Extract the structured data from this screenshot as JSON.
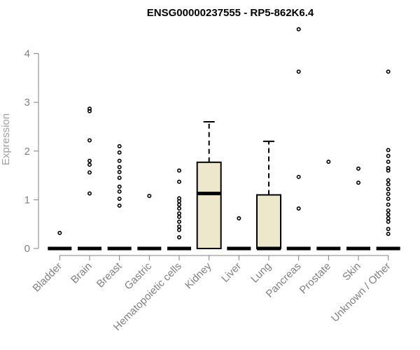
{
  "chart_data": {
    "type": "boxplot",
    "title": "ENSG00000237555 - RP5-862K6.4",
    "ylabel": "Expression",
    "xlabel": "",
    "ylim": [
      0,
      4.5
    ],
    "yticks": [
      0,
      1,
      2,
      3,
      4
    ],
    "grid": false,
    "legend": "none",
    "box_fill": "#ede7cb",
    "categories": [
      "Bladder",
      "Brain",
      "Breast",
      "Gastric",
      "Hematopoietic cells",
      "Kidney",
      "Liver",
      "Lung",
      "Pancreas",
      "Prostate",
      "Skin",
      "Unknown / Other"
    ],
    "boxes": [
      {
        "category": "Bladder",
        "q1": 0,
        "median": 0,
        "q3": 0,
        "whisker_low": 0,
        "whisker_high": 0,
        "outliers": [
          0.32
        ]
      },
      {
        "category": "Brain",
        "q1": 0,
        "median": 0,
        "q3": 0,
        "whisker_low": 0,
        "whisker_high": 0,
        "outliers": [
          1.13,
          1.56,
          1.72,
          1.8,
          2.22,
          2.82,
          2.87
        ]
      },
      {
        "category": "Breast",
        "q1": 0,
        "median": 0,
        "q3": 0,
        "whisker_low": 0,
        "whisker_high": 0,
        "outliers": [
          0.88,
          1.02,
          1.17,
          1.27,
          1.45,
          1.57,
          1.67,
          1.8,
          1.97,
          2.1
        ]
      },
      {
        "category": "Gastric",
        "q1": 0,
        "median": 0,
        "q3": 0,
        "whisker_low": 0,
        "whisker_high": 0,
        "outliers": [
          1.08
        ]
      },
      {
        "category": "Hematopoietic cells",
        "q1": 0,
        "median": 0,
        "q3": 0,
        "whisker_low": 0,
        "whisker_high": 0,
        "outliers": [
          0.23,
          0.38,
          0.45,
          0.55,
          0.65,
          0.72,
          0.82,
          0.9,
          0.97,
          1.03,
          1.37,
          1.6
        ]
      },
      {
        "category": "Kidney",
        "q1": 0,
        "median": 1.13,
        "q3": 1.77,
        "whisker_low": 0,
        "whisker_high": 2.6,
        "outliers": []
      },
      {
        "category": "Liver",
        "q1": 0,
        "median": 0,
        "q3": 0,
        "whisker_low": 0,
        "whisker_high": 0,
        "outliers": [
          0.62
        ]
      },
      {
        "category": "Lung",
        "q1": 0,
        "median": 0,
        "q3": 1.1,
        "whisker_low": 0,
        "whisker_high": 2.2,
        "outliers": []
      },
      {
        "category": "Pancreas",
        "q1": 0,
        "median": 0,
        "q3": 0,
        "whisker_low": 0,
        "whisker_high": 0,
        "outliers": [
          0.82,
          1.47,
          3.63,
          4.5
        ]
      },
      {
        "category": "Prostate",
        "q1": 0,
        "median": 0,
        "q3": 0,
        "whisker_low": 0,
        "whisker_high": 0,
        "outliers": [
          1.78
        ]
      },
      {
        "category": "Skin",
        "q1": 0,
        "median": 0,
        "q3": 0,
        "whisker_low": 0,
        "whisker_high": 0,
        "outliers": [
          1.35,
          1.64
        ]
      },
      {
        "category": "Unknown / Other",
        "q1": 0,
        "median": 0,
        "q3": 0,
        "whisker_low": 0,
        "whisker_high": 0,
        "outliers": [
          0.3,
          0.4,
          0.55,
          0.62,
          0.7,
          0.78,
          0.9,
          1.02,
          1.12,
          1.22,
          1.32,
          1.4,
          1.6,
          1.65,
          1.78,
          1.9,
          2.02,
          3.63
        ]
      }
    ]
  }
}
